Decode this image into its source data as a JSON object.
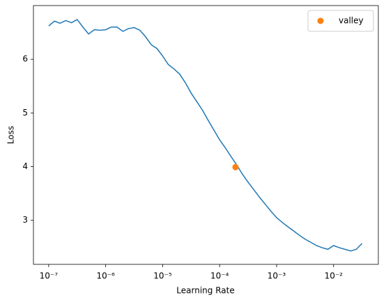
{
  "chart_data": {
    "type": "line",
    "xlabel": "Learning Rate",
    "ylabel": "Loss",
    "xscale": "log",
    "xlim": [
      5.4e-08,
      0.061
    ],
    "ylim": [
      2.18,
      7.0
    ],
    "xticks": [
      {
        "value": 1e-07,
        "label": "10⁻⁷"
      },
      {
        "value": 1e-06,
        "label": "10⁻⁶"
      },
      {
        "value": 1e-05,
        "label": "10⁻⁵"
      },
      {
        "value": 0.0001,
        "label": "10⁻⁴"
      },
      {
        "value": 0.001,
        "label": "10⁻³"
      },
      {
        "value": 0.01,
        "label": "10⁻²"
      }
    ],
    "yticks": [
      3,
      4,
      5,
      6
    ],
    "legend": "upper right",
    "line": {
      "color": "#1f77b4",
      "x": [
        1e-07,
        1.26e-07,
        1.58e-07,
        2e-07,
        2.51e-07,
        3.16e-07,
        3.98e-07,
        5.01e-07,
        6.31e-07,
        7.94e-07,
        1e-06,
        1.26e-06,
        1.58e-06,
        2e-06,
        2.51e-06,
        3.16e-06,
        3.98e-06,
        5.01e-06,
        6.31e-06,
        7.94e-06,
        1e-05,
        1.26e-05,
        1.58e-05,
        2e-05,
        2.51e-05,
        3.16e-05,
        3.98e-05,
        5.01e-05,
        6.31e-05,
        7.94e-05,
        0.0001,
        0.000126,
        0.000158,
        0.0002,
        0.000251,
        0.000316,
        0.000398,
        0.000501,
        0.000631,
        0.000794,
        0.001,
        0.00126,
        0.00158,
        0.002,
        0.00251,
        0.00316,
        0.00398,
        0.00501,
        0.00631,
        0.00794,
        0.01,
        0.0126,
        0.0158,
        0.02,
        0.0251,
        0.0316
      ],
      "values": [
        6.62,
        6.71,
        6.67,
        6.72,
        6.68,
        6.74,
        6.6,
        6.47,
        6.55,
        6.54,
        6.55,
        6.6,
        6.6,
        6.52,
        6.57,
        6.59,
        6.54,
        6.42,
        6.27,
        6.2,
        6.06,
        5.9,
        5.82,
        5.72,
        5.56,
        5.37,
        5.21,
        5.05,
        4.86,
        4.68,
        4.5,
        4.35,
        4.19,
        4.03,
        3.86,
        3.71,
        3.57,
        3.43,
        3.3,
        3.17,
        3.05,
        2.96,
        2.88,
        2.8,
        2.72,
        2.65,
        2.59,
        2.53,
        2.49,
        2.46,
        2.53,
        2.49,
        2.46,
        2.43,
        2.46,
        2.57
      ]
    },
    "valley": {
      "name": "valley",
      "color": "#ff7f0e",
      "x": 0.00019,
      "value": 3.99
    }
  }
}
